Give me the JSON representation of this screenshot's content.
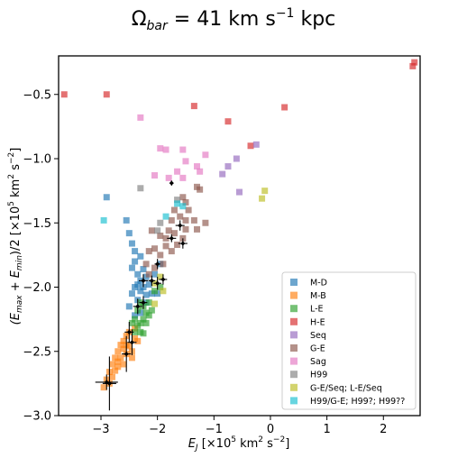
{
  "chart_data": {
    "type": "scatter",
    "title_main": "Ω",
    "title_sub": "bar",
    "title_rest": " = 41 km s",
    "title_sup": "−1",
    "title_end": " kpc",
    "xlabel": {
      "main": "E",
      "sub": "J",
      "rest": " [×10",
      "sup1": "5",
      "rest2": " km",
      "sup2": "2",
      "rest3": " s",
      "sup3": "−2",
      "end": "]"
    },
    "ylabel": {
      "open": "(E",
      "sub1": "max",
      "plus": " + E",
      "sub2": "min",
      "rest": ")/2 [×10",
      "sup1": "5",
      "rest2": " km",
      "sup2": "2",
      "rest3": " s",
      "sup3": "−2",
      "end": "]"
    },
    "xlim": [
      -3.75,
      2.65
    ],
    "ylim": [
      -3.0,
      -0.2
    ],
    "xticks": [
      {
        "v": -3,
        "label": "−3"
      },
      {
        "v": -2,
        "label": "−2"
      },
      {
        "v": -1,
        "label": "−1"
      },
      {
        "v": 0,
        "label": "0"
      },
      {
        "v": 1,
        "label": "1"
      },
      {
        "v": 2,
        "label": "2"
      }
    ],
    "yticks": [
      {
        "v": -3.0,
        "label": "−3.0"
      },
      {
        "v": -2.5,
        "label": "−2.5"
      },
      {
        "v": -2.0,
        "label": "−2.0"
      },
      {
        "v": -1.5,
        "label": "−1.5"
      },
      {
        "v": -1.0,
        "label": "−1.0"
      },
      {
        "v": -0.5,
        "label": "−0.5"
      }
    ],
    "grid": false,
    "legend_position": "lower-right",
    "series": [
      {
        "name": "M-D",
        "color": "#1f77b4",
        "points": [
          [
            -2.9,
            -1.3
          ],
          [
            -2.55,
            -1.48
          ],
          [
            -2.5,
            -1.58
          ],
          [
            -2.45,
            -1.66
          ],
          [
            -2.4,
            -1.72
          ],
          [
            -2.4,
            -1.8
          ],
          [
            -2.3,
            -1.76
          ],
          [
            -2.45,
            -1.85
          ],
          [
            -2.35,
            -1.9
          ],
          [
            -2.25,
            -1.86
          ],
          [
            -2.3,
            -1.95
          ],
          [
            -2.2,
            -1.92
          ],
          [
            -2.4,
            -2.0
          ],
          [
            -2.45,
            -2.05
          ],
          [
            -2.35,
            -2.1
          ],
          [
            -2.3,
            -2.03
          ],
          [
            -2.25,
            -2.0
          ],
          [
            -2.5,
            -2.15
          ],
          [
            -2.2,
            -2.06
          ],
          [
            -2.15,
            -1.98
          ],
          [
            -2.05,
            -1.9
          ],
          [
            -2.4,
            -2.22
          ],
          [
            -2.2,
            -2.12
          ],
          [
            -2.1,
            -2.05
          ],
          [
            -1.95,
            -1.82
          ],
          [
            -2.35,
            -1.98
          ],
          [
            -2.0,
            -2.05
          ],
          [
            -2.3,
            -2.2
          ]
        ]
      },
      {
        "name": "M-B",
        "color": "#ff7f0e",
        "points": [
          [
            -2.95,
            -2.78
          ],
          [
            -2.9,
            -2.72
          ],
          [
            -2.85,
            -2.66
          ],
          [
            -2.8,
            -2.6
          ],
          [
            -2.75,
            -2.55
          ],
          [
            -2.7,
            -2.58
          ],
          [
            -2.7,
            -2.5
          ],
          [
            -2.65,
            -2.45
          ],
          [
            -2.6,
            -2.42
          ],
          [
            -2.55,
            -2.52
          ],
          [
            -2.6,
            -2.6
          ],
          [
            -2.5,
            -2.46
          ],
          [
            -2.55,
            -2.38
          ],
          [
            -2.75,
            -2.65
          ],
          [
            -2.65,
            -2.55
          ],
          [
            -2.45,
            -2.5
          ],
          [
            -2.5,
            -2.35
          ],
          [
            -2.4,
            -2.4
          ],
          [
            -2.8,
            -2.7
          ],
          [
            -2.6,
            -2.48
          ],
          [
            -2.85,
            -2.75
          ],
          [
            -2.45,
            -2.55
          ],
          [
            -2.7,
            -2.62
          ],
          [
            -2.4,
            -2.32
          ],
          [
            -2.55,
            -2.45
          ],
          [
            -2.35,
            -2.42
          ]
        ]
      },
      {
        "name": "L-E",
        "color": "#2ca02c",
        "points": [
          [
            -2.4,
            -2.25
          ],
          [
            -2.3,
            -2.28
          ],
          [
            -2.35,
            -2.18
          ],
          [
            -2.25,
            -2.15
          ],
          [
            -2.3,
            -2.35
          ],
          [
            -2.2,
            -2.2
          ],
          [
            -2.15,
            -2.12
          ],
          [
            -2.1,
            -2.18
          ],
          [
            -2.35,
            -2.3
          ],
          [
            -2.25,
            -2.25
          ],
          [
            -2.05,
            -2.03
          ],
          [
            -2.2,
            -2.28
          ],
          [
            -2.3,
            -2.12
          ],
          [
            -2.45,
            -2.28
          ],
          [
            -2.15,
            -2.22
          ],
          [
            -1.95,
            -2.0
          ],
          [
            -2.4,
            -2.35
          ],
          [
            -2.25,
            -2.36
          ]
        ]
      },
      {
        "name": "H-E",
        "color": "#d62728",
        "points": [
          [
            -3.65,
            -0.5
          ],
          [
            -2.9,
            -0.5
          ],
          [
            -1.35,
            -0.59
          ],
          [
            -0.75,
            -0.71
          ],
          [
            -0.35,
            -0.9
          ],
          [
            0.25,
            -0.6
          ],
          [
            2.55,
            -0.25
          ],
          [
            2.52,
            -0.28
          ]
        ]
      },
      {
        "name": "Seq",
        "color": "#9467bd",
        "points": [
          [
            -0.6,
            -1.0
          ],
          [
            -0.75,
            -1.06
          ],
          [
            -0.85,
            -1.12
          ],
          [
            -0.25,
            -0.89
          ],
          [
            -0.55,
            -1.26
          ]
        ]
      },
      {
        "name": "G-E",
        "color": "#8c564b",
        "points": [
          [
            -1.3,
            -1.22
          ],
          [
            -1.25,
            -1.24
          ],
          [
            -1.55,
            -1.3
          ],
          [
            -1.5,
            -1.34
          ],
          [
            -1.45,
            -1.4
          ],
          [
            -1.7,
            -1.4
          ],
          [
            -1.6,
            -1.45
          ],
          [
            -1.75,
            -1.48
          ],
          [
            -1.5,
            -1.48
          ],
          [
            -1.35,
            -1.48
          ],
          [
            -1.15,
            -1.5
          ],
          [
            -1.3,
            -1.55
          ],
          [
            -1.5,
            -1.55
          ],
          [
            -1.7,
            -1.58
          ],
          [
            -1.85,
            -1.62
          ],
          [
            -1.95,
            -1.6
          ],
          [
            -2.1,
            -1.56
          ],
          [
            -1.85,
            -1.68
          ],
          [
            -1.75,
            -1.72
          ],
          [
            -1.95,
            -1.75
          ],
          [
            -2.05,
            -1.7
          ],
          [
            -2.15,
            -1.72
          ],
          [
            -1.9,
            -1.82
          ],
          [
            -2.05,
            -1.85
          ],
          [
            -2.2,
            -1.82
          ],
          [
            -2.15,
            -1.9
          ],
          [
            -1.8,
            -1.56
          ],
          [
            -1.55,
            -1.62
          ],
          [
            -1.65,
            -1.67
          ]
        ]
      },
      {
        "name": "Sag",
        "color": "#e377c2",
        "points": [
          [
            -2.3,
            -0.68
          ],
          [
            -1.95,
            -0.92
          ],
          [
            -1.85,
            -0.93
          ],
          [
            -1.55,
            -0.93
          ],
          [
            -1.15,
            -0.97
          ],
          [
            -1.3,
            -1.06
          ],
          [
            -1.5,
            -1.02
          ],
          [
            -1.25,
            -1.1
          ],
          [
            -1.65,
            -1.1
          ],
          [
            -2.05,
            -1.13
          ],
          [
            -1.8,
            -1.15
          ],
          [
            -1.55,
            -1.15
          ]
        ]
      },
      {
        "name": "H99",
        "color": "#7f7f7f",
        "points": [
          [
            -2.3,
            -1.23
          ],
          [
            -1.95,
            -1.5
          ],
          [
            -1.65,
            -1.32
          ],
          [
            -2.0,
            -1.56
          ]
        ]
      },
      {
        "name": "G-E/Seq; L-E/Seq",
        "color": "#bcbd22",
        "points": [
          [
            -0.1,
            -1.25
          ],
          [
            -0.15,
            -1.31
          ],
          [
            -1.95,
            -1.92
          ],
          [
            -2.05,
            -1.97
          ],
          [
            -1.9,
            -2.03
          ],
          [
            -2.05,
            -2.13
          ]
        ]
      },
      {
        "name": "H99/G-E; H99?; H99??",
        "color": "#17becf",
        "points": [
          [
            -2.95,
            -1.48
          ],
          [
            -1.85,
            -1.45
          ],
          [
            -1.65,
            -1.35
          ],
          [
            -1.55,
            -1.37
          ]
        ]
      }
    ],
    "errorbar_points": [
      {
        "x": -2.85,
        "y": -2.75,
        "xerr": 0.12,
        "yerr": 0.21
      },
      {
        "x": -2.9,
        "y": -2.74,
        "xerr": 0.2,
        "yerr": 0.06
      },
      {
        "x": -2.55,
        "y": -2.52,
        "xerr": 0.08,
        "yerr": 0.14
      },
      {
        "x": -2.45,
        "y": -2.43,
        "xerr": 0.08,
        "yerr": 0.1
      },
      {
        "x": -2.5,
        "y": -2.35,
        "xerr": 0.08,
        "yerr": 0.08
      },
      {
        "x": -2.35,
        "y": -2.15,
        "xerr": 0.08,
        "yerr": 0.06
      },
      {
        "x": -2.25,
        "y": -2.12,
        "xerr": 0.07,
        "yerr": 0.05
      },
      {
        "x": -2.25,
        "y": -1.95,
        "xerr": 0.08,
        "yerr": 0.05
      },
      {
        "x": -2.0,
        "y": -1.97,
        "xerr": 0.07,
        "yerr": 0.05
      },
      {
        "x": -1.9,
        "y": -1.94,
        "xerr": 0.07,
        "yerr": 0.04
      },
      {
        "x": -2.1,
        "y": -1.95,
        "xerr": 0.06,
        "yerr": 0.04
      },
      {
        "x": -2.0,
        "y": -1.82,
        "xerr": 0.05,
        "yerr": 0.04
      },
      {
        "x": -1.6,
        "y": -1.52,
        "xerr": 0.08,
        "yerr": 0.04
      },
      {
        "x": -1.75,
        "y": -1.62,
        "xerr": 0.08,
        "yerr": 0.03
      },
      {
        "x": -1.55,
        "y": -1.66,
        "xerr": 0.08,
        "yerr": 0.04
      },
      {
        "x": -1.75,
        "y": -1.19,
        "xerr": 0.02,
        "yerr": 0.02
      }
    ]
  }
}
